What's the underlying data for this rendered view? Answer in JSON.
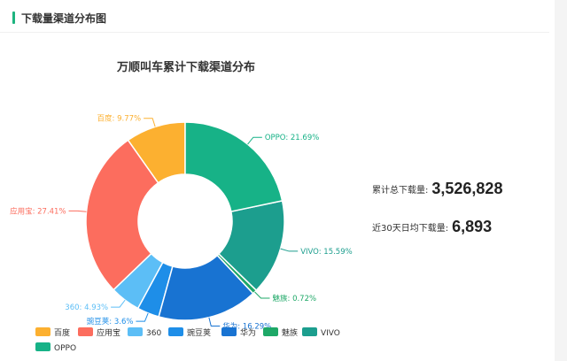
{
  "section": {
    "title": "下载量渠道分布图"
  },
  "stats": [
    {
      "label": "累计总下载量:",
      "value": "3,526,828"
    },
    {
      "label": "近30天日均下载量:",
      "value": "6,893"
    }
  ],
  "chart_data": {
    "type": "pie",
    "title": "万顺叫车累计下载渠道分布",
    "inner_radius_ratio": 0.47,
    "start_angle_deg": 90,
    "legend_position": "bottom-left",
    "slices": [
      {
        "name": "百度",
        "value": 9.77,
        "label": "百度: 9.77%",
        "color": "#fcb030"
      },
      {
        "name": "应用宝",
        "value": 27.41,
        "label": "应用宝: 27.41%",
        "color": "#fc6d5e"
      },
      {
        "name": "360",
        "value": 4.93,
        "label": "360: 4.93%",
        "color": "#5cbef6"
      },
      {
        "name": "豌豆荚",
        "value": 3.6,
        "label": "豌豆荚: 3.6%",
        "color": "#1e8ee8"
      },
      {
        "name": "华为",
        "value": 16.29,
        "label": "华为: 16.29%",
        "color": "#1873d2"
      },
      {
        "name": "魅族",
        "value": 0.72,
        "label": "魅族: 0.72%",
        "color": "#1ea867"
      },
      {
        "name": "VIVO",
        "value": 15.59,
        "label": "VIVO: 15.59%",
        "color": "#1c9e8e"
      },
      {
        "name": "OPPO",
        "value": 21.69,
        "label": "OPPO: 21.69%",
        "color": "#17b287"
      }
    ]
  }
}
